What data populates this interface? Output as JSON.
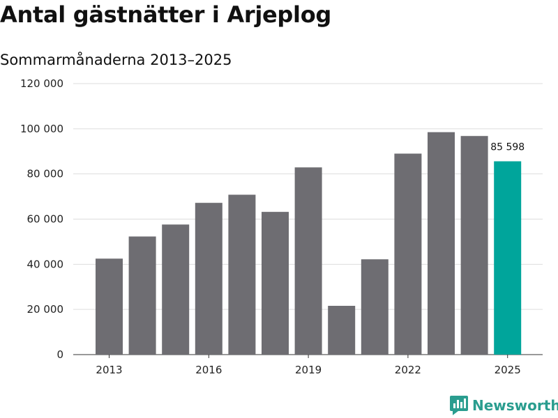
{
  "title": "Antal gästnätter i Arjeplog",
  "subtitle": "Sommarmånaderna 2013–2025",
  "brand": {
    "name": "Newsworthy",
    "icon": "newsworthy-logo-icon",
    "color": "#2a9d8f"
  },
  "chart_data": {
    "type": "bar",
    "categories": [
      "2013",
      "2014",
      "2015",
      "2016",
      "2017",
      "2018",
      "2019",
      "2020",
      "2021",
      "2022",
      "2023",
      "2024",
      "2025"
    ],
    "values": [
      42500,
      52300,
      57600,
      67200,
      70800,
      63200,
      82900,
      21600,
      42200,
      89000,
      98500,
      96800,
      85598
    ],
    "x_tick_labels": [
      "2013",
      "2016",
      "2019",
      "2022",
      "2025"
    ],
    "y_ticks": [
      0,
      20000,
      40000,
      60000,
      80000,
      100000,
      120000
    ],
    "y_tick_labels": [
      "0",
      "20 000",
      "40 000",
      "60 000",
      "80 000",
      "100 000",
      "120 000"
    ],
    "ylim": [
      0,
      120000
    ],
    "highlight_index": 12,
    "highlight_label": "85 598",
    "colors": {
      "bar": "#6e6d72",
      "highlight": "#00a59b",
      "grid": "#dddddd"
    },
    "grid": true,
    "xlabel": "",
    "ylabel": ""
  }
}
